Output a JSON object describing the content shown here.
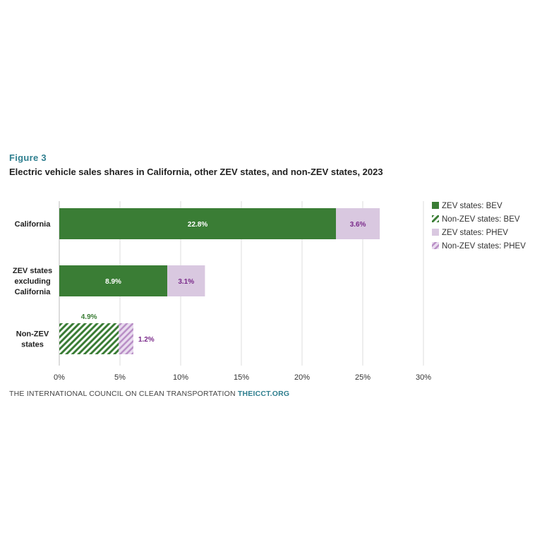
{
  "figure": {
    "label": "Figure 3",
    "title": "Electric vehicle sales shares in California, other ZEV states, and non-ZEV states, 2023"
  },
  "footer": {
    "org": "THE INTERNATIONAL COUNCIL ON CLEAN TRANSPORTATION",
    "site": "THEICCT.ORG"
  },
  "colors": {
    "bev": "#3a7d35",
    "phev": "#d9c8e0",
    "bev_label": "#3a7d35",
    "phev_label": "#7a2a8a",
    "grid": "#dddddd"
  },
  "chart_data": {
    "type": "bar",
    "orientation": "horizontal",
    "stacked": true,
    "categories": [
      [
        "California"
      ],
      [
        "ZEV states",
        "excluding",
        "California"
      ],
      [
        "Non-ZEV",
        "states"
      ]
    ],
    "series": [
      {
        "name": "BEV",
        "values": [
          22.8,
          8.9,
          4.9
        ],
        "labels": [
          "22.8%",
          "8.9%",
          "4.9%"
        ]
      },
      {
        "name": "PHEV",
        "values": [
          3.6,
          3.1,
          1.2
        ],
        "labels": [
          "3.6%",
          "3.1%",
          "1.2%"
        ]
      }
    ],
    "xlim": [
      0,
      30
    ],
    "xticks": [
      0,
      5,
      10,
      15,
      20,
      25,
      30
    ],
    "xtick_labels": [
      "0%",
      "5%",
      "10%",
      "15%",
      "20%",
      "25%",
      "30%"
    ],
    "grid": true,
    "legend_position": "right",
    "legend": [
      {
        "label": "ZEV states: BEV",
        "series": "BEV",
        "pattern": "solid"
      },
      {
        "label": "Non-ZEV states: BEV",
        "series": "BEV",
        "pattern": "hatched"
      },
      {
        "label": "ZEV states: PHEV",
        "series": "PHEV",
        "pattern": "solid"
      },
      {
        "label": "Non-ZEV states: PHEV",
        "series": "PHEV",
        "pattern": "hatched"
      }
    ],
    "category_patterns": [
      "solid",
      "solid",
      "hatched"
    ]
  }
}
